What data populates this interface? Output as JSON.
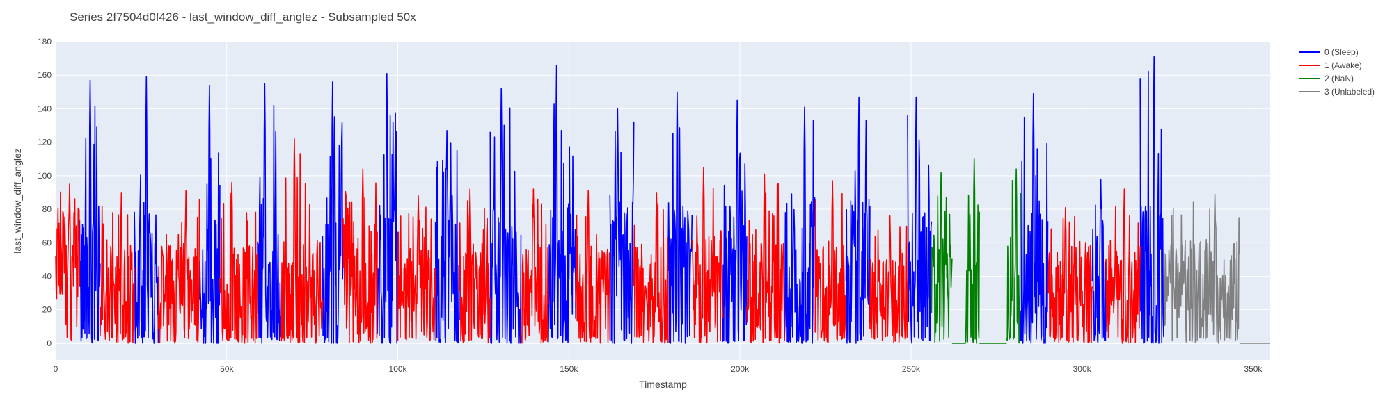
{
  "chart_data": {
    "type": "line",
    "title": "Series 2f7504d0f426 - last_window_diff_anglez - Subsampled 50x",
    "xlabel": "Timestamp",
    "ylabel": "last_window_diff_anglez",
    "xlim": [
      0,
      355000
    ],
    "ylim": [
      -10,
      180
    ],
    "x_ticks": [
      {
        "value": 0,
        "label": "0"
      },
      {
        "value": 50000,
        "label": "50k"
      },
      {
        "value": 100000,
        "label": "100k"
      },
      {
        "value": 150000,
        "label": "150k"
      },
      {
        "value": 200000,
        "label": "200k"
      },
      {
        "value": 250000,
        "label": "250k"
      },
      {
        "value": 300000,
        "label": "300k"
      },
      {
        "value": 350000,
        "label": "350k"
      }
    ],
    "y_ticks": [
      {
        "value": 0,
        "label": "0"
      },
      {
        "value": 20,
        "label": "20"
      },
      {
        "value": 40,
        "label": "40"
      },
      {
        "value": 60,
        "label": "60"
      },
      {
        "value": 80,
        "label": "80"
      },
      {
        "value": 100,
        "label": "100"
      },
      {
        "value": 120,
        "label": "120"
      },
      {
        "value": 140,
        "label": "140"
      },
      {
        "value": 160,
        "label": "160"
      },
      {
        "value": 180,
        "label": "180"
      }
    ],
    "grid": true,
    "legend_position": "right",
    "series": [
      {
        "name": "0 (Sleep)",
        "color": "#0000ff",
        "segments": [
          {
            "start": 7000,
            "end": 13000,
            "max": 157,
            "mid": 40,
            "spread": 45
          },
          {
            "start": 23000,
            "end": 30000,
            "max": 159,
            "mid": 40,
            "spread": 45
          },
          {
            "start": 42000,
            "end": 48000,
            "max": 154,
            "mid": 35,
            "spread": 45
          },
          {
            "start": 59000,
            "end": 66000,
            "max": 155,
            "mid": 38,
            "spread": 45
          },
          {
            "start": 78000,
            "end": 84000,
            "max": 156,
            "mid": 38,
            "spread": 45
          },
          {
            "start": 94000,
            "end": 100000,
            "max": 161,
            "mid": 40,
            "spread": 45
          },
          {
            "start": 111000,
            "end": 118000,
            "max": 127,
            "mid": 38,
            "spread": 40
          },
          {
            "start": 127000,
            "end": 136000,
            "max": 152,
            "mid": 40,
            "spread": 45
          },
          {
            "start": 144000,
            "end": 152000,
            "max": 166,
            "mid": 42,
            "spread": 45
          },
          {
            "start": 162000,
            "end": 169000,
            "max": 140,
            "mid": 40,
            "spread": 45
          },
          {
            "start": 179000,
            "end": 186000,
            "max": 150,
            "mid": 40,
            "spread": 45
          },
          {
            "start": 195000,
            "end": 202000,
            "max": 145,
            "mid": 40,
            "spread": 45
          },
          {
            "start": 213000,
            "end": 222000,
            "max": 141,
            "mid": 42,
            "spread": 45
          },
          {
            "start": 231000,
            "end": 238000,
            "max": 147,
            "mid": 42,
            "spread": 45
          },
          {
            "start": 249000,
            "end": 256000,
            "max": 147,
            "mid": 38,
            "spread": 40
          },
          {
            "start": 282000,
            "end": 290000,
            "max": 149,
            "mid": 40,
            "spread": 45
          },
          {
            "start": 303000,
            "end": 307000,
            "max": 98,
            "mid": 35,
            "spread": 35
          },
          {
            "start": 317000,
            "end": 324000,
            "max": 171,
            "mid": 42,
            "spread": 45
          }
        ]
      },
      {
        "name": "1 (Awake)",
        "color": "#ff0000",
        "segments": [
          {
            "start": 0,
            "end": 7000,
            "max": 95,
            "mid": 45,
            "spread": 35
          },
          {
            "start": 13000,
            "end": 23000,
            "max": 90,
            "mid": 30,
            "spread": 30
          },
          {
            "start": 30000,
            "end": 42000,
            "max": 91,
            "mid": 30,
            "spread": 30
          },
          {
            "start": 48000,
            "end": 59000,
            "max": 96,
            "mid": 30,
            "spread": 30
          },
          {
            "start": 66000,
            "end": 78000,
            "max": 122,
            "mid": 32,
            "spread": 32
          },
          {
            "start": 84000,
            "end": 94000,
            "max": 104,
            "mid": 32,
            "spread": 32
          },
          {
            "start": 100000,
            "end": 111000,
            "max": 88,
            "mid": 28,
            "spread": 28
          },
          {
            "start": 118000,
            "end": 127000,
            "max": 92,
            "mid": 30,
            "spread": 30
          },
          {
            "start": 136000,
            "end": 144000,
            "max": 92,
            "mid": 30,
            "spread": 30
          },
          {
            "start": 152000,
            "end": 162000,
            "max": 91,
            "mid": 30,
            "spread": 30
          },
          {
            "start": 169000,
            "end": 179000,
            "max": 90,
            "mid": 30,
            "spread": 30
          },
          {
            "start": 186000,
            "end": 195000,
            "max": 105,
            "mid": 32,
            "spread": 32
          },
          {
            "start": 202000,
            "end": 213000,
            "max": 101,
            "mid": 30,
            "spread": 30
          },
          {
            "start": 222000,
            "end": 231000,
            "max": 97,
            "mid": 30,
            "spread": 30
          },
          {
            "start": 238000,
            "end": 249000,
            "max": 76,
            "mid": 26,
            "spread": 26
          },
          {
            "start": 290000,
            "end": 303000,
            "max": 81,
            "mid": 30,
            "spread": 30
          },
          {
            "start": 307000,
            "end": 317000,
            "max": 92,
            "mid": 30,
            "spread": 30
          }
        ]
      },
      {
        "name": "2 (NaN)",
        "color": "#008000",
        "segments": [
          {
            "start": 256000,
            "end": 262000,
            "max": 102,
            "mid": 30,
            "spread": 30
          },
          {
            "start": 262000,
            "end": 266000,
            "max": 0,
            "mid": 0,
            "spread": 0
          },
          {
            "start": 266000,
            "end": 270000,
            "max": 110,
            "mid": 40,
            "spread": 40
          },
          {
            "start": 270000,
            "end": 278000,
            "max": 0,
            "mid": 0,
            "spread": 0
          },
          {
            "start": 278000,
            "end": 282000,
            "max": 104,
            "mid": 30,
            "spread": 30
          }
        ]
      },
      {
        "name": "3 (Unlabeled)",
        "color": "#808080",
        "segments": [
          {
            "start": 324000,
            "end": 346000,
            "max": 89,
            "mid": 32,
            "spread": 30
          },
          {
            "start": 346000,
            "end": 355000,
            "max": 0,
            "mid": 0,
            "spread": 0
          }
        ]
      }
    ]
  }
}
